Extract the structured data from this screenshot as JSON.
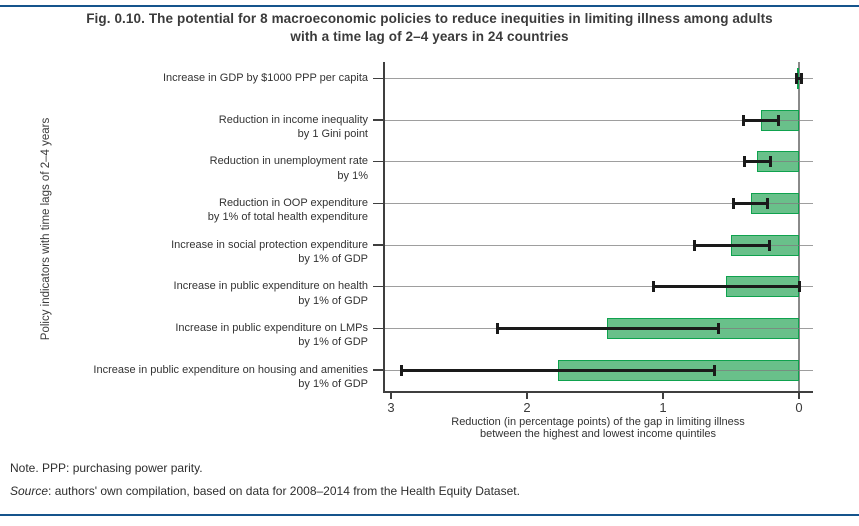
{
  "page": {
    "title_line1": "Fig. 0.10. The potential for 8 macroeconomic policies to reduce inequities in limiting illness among adults",
    "title_line2": "with a time lag of 2–4 years in 24 countries",
    "note": "Note. PPP: purchasing power parity.",
    "source_label": "Source",
    "source_text": ": authors' own compilation, based on data for 2008–2014 from the Health Equity Dataset.",
    "accent_color": "#15548c"
  },
  "chart_data": {
    "type": "bar",
    "orientation": "horizontal",
    "title": "Fig. 0.10. The potential for 8 macroeconomic policies to reduce inequities in limiting illness among adults with a time lag of 2–4 years in 24 countries",
    "ylabel": "Policy indicators with time lags of 2–4 years",
    "xlabel_line1": "Reduction (in percentage points) of the gap in limiting illness",
    "xlabel_line2": "between the highest and lowest income quintiles",
    "x_axis": {
      "ticks": [
        "3",
        "2",
        "1",
        "0"
      ],
      "tick_values": [
        3,
        2,
        1,
        0
      ],
      "reversed": true,
      "range": [
        3.06,
        -0.1
      ]
    },
    "grid": "category gridlines on",
    "legend": "none",
    "bar_fill_color": "#5cbb80",
    "bar_border_color": "#0fa24e",
    "error_bar_color": "#1a1a1a",
    "categories": [
      {
        "label_line1": "Increase in GDP by $1000 PPP per capita",
        "label_line2": "",
        "value": 0.01,
        "ci_low": -0.02,
        "ci_high": 0.02
      },
      {
        "label_line1": "Reduction in income inequality",
        "label_line2": "by 1 Gini point",
        "value": 0.28,
        "ci_low": 0.15,
        "ci_high": 0.41
      },
      {
        "label_line1": "Reduction in unemployment rate",
        "label_line2": "by 1%",
        "value": 0.31,
        "ci_low": 0.21,
        "ci_high": 0.4
      },
      {
        "label_line1": "Reduction in OOP expenditure",
        "label_line2": "by 1% of total health expenditure",
        "value": 0.35,
        "ci_low": 0.23,
        "ci_high": 0.48
      },
      {
        "label_line1": "Increase in social protection expenditure",
        "label_line2": "by 1% of GDP",
        "value": 0.5,
        "ci_low": 0.22,
        "ci_high": 0.77
      },
      {
        "label_line1": "Increase in public expenditure on health",
        "label_line2": "by 1% of GDP",
        "value": 0.54,
        "ci_low": 0.0,
        "ci_high": 1.07
      },
      {
        "label_line1": "Increase in public expenditure on LMPs",
        "label_line2": "by 1% of GDP",
        "value": 1.41,
        "ci_low": 0.59,
        "ci_high": 2.22
      },
      {
        "label_line1": "Increase in public expenditure on housing and amenities",
        "label_line2": "by 1% of GDP",
        "value": 1.77,
        "ci_low": 0.62,
        "ci_high": 2.92
      }
    ]
  }
}
